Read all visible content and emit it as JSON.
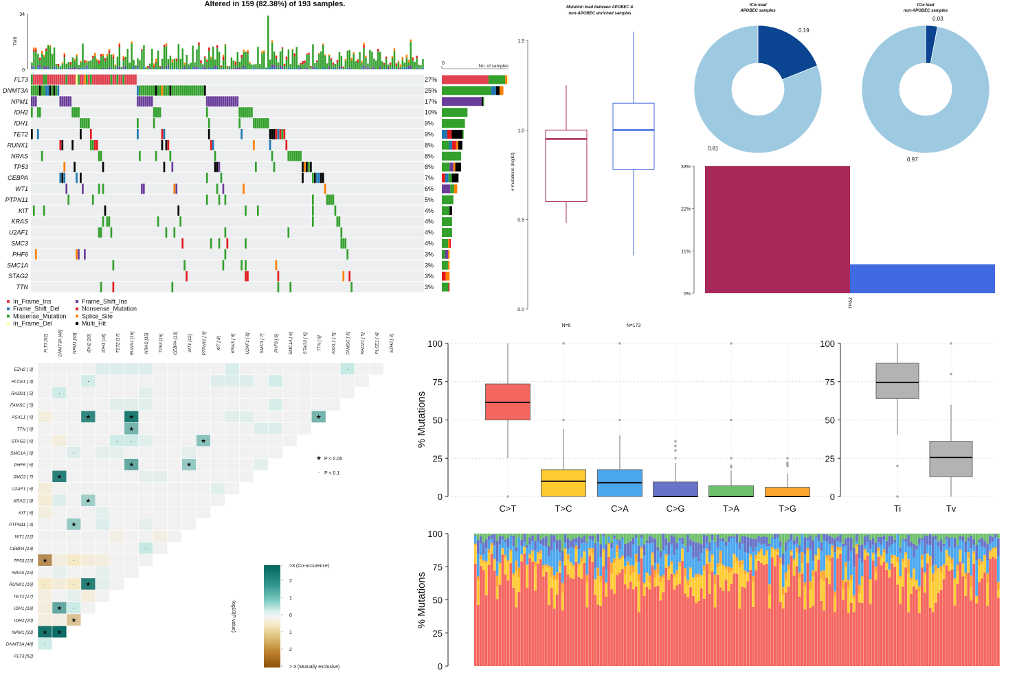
{
  "colors": {
    "In_Frame_Ins": "#e0404f",
    "Frame_Shift_Del": "#1f78b4",
    "Missense_Mutation": "#33a02c",
    "In_Frame_Del": "#ffff99",
    "Frame_Shift_Ins": "#6a3d9a",
    "Nonsense_Mutation": "#e31a1c",
    "Splice_Site": "#ff7f00",
    "Multi_Hit": "#000000",
    "apobec": "#a8285a",
    "non_apobec": "#4169e1",
    "tcw_dark": "#0b4591",
    "tcw_light": "#9ecae1",
    "co_occurrence": "#01665e",
    "mutually_exclusive": "#8c510a"
  },
  "oncoplot": {
    "title": "Altered in 159 (82.38%) of 193 samples.",
    "n_samples": 193,
    "tmb_label": "TMB",
    "tmb_ticks": [
      "0",
      "34"
    ],
    "tmb_max": 34,
    "bar_axis_zero": "0",
    "bar_axis_label": "No. of samples",
    "genes": [
      {
        "name": "FLT3",
        "pct": "27%",
        "pctv": 27,
        "count": 52,
        "mix": {
          "In_Frame_Ins": 0.7,
          "Missense_Mutation": 0.25,
          "Splice_Site": 0.03,
          "In_Frame_Del": 0.02
        }
      },
      {
        "name": "DNMT3A",
        "pct": "25%",
        "pctv": 25,
        "count": 48,
        "mix": {
          "Missense_Mutation": 0.8,
          "Frame_Shift_Del": 0.08,
          "Multi_Hit": 0.06,
          "Splice_Site": 0.06
        }
      },
      {
        "name": "NPM1",
        "pct": "17%",
        "pctv": 17,
        "count": 33,
        "mix": {
          "Frame_Shift_Ins": 0.94,
          "Multi_Hit": 0.04,
          "Missense_Mutation": 0.02
        }
      },
      {
        "name": "IDH2",
        "pct": "10%",
        "pctv": 10,
        "count": 20,
        "mix": {
          "Missense_Mutation": 1
        }
      },
      {
        "name": "IDH1",
        "pct": "9%",
        "pctv": 9,
        "count": 18,
        "mix": {
          "Missense_Mutation": 1
        }
      },
      {
        "name": "TET2",
        "pct": "9%",
        "pctv": 9,
        "count": 17,
        "mix": {
          "Frame_Shift_Del": 0.25,
          "Nonsense_Mutation": 0.2,
          "Multi_Hit": 0.5,
          "Missense_Mutation": 0.05
        }
      },
      {
        "name": "RUNX1",
        "pct": "8%",
        "pctv": 8,
        "count": 16,
        "mix": {
          "Missense_Mutation": 0.35,
          "Frame_Shift_Del": 0.15,
          "Nonsense_Mutation": 0.2,
          "Splice_Site": 0.1,
          "Multi_Hit": 0.2
        }
      },
      {
        "name": "NRAS",
        "pct": "8%",
        "pctv": 8,
        "count": 15,
        "mix": {
          "Missense_Mutation": 1
        }
      },
      {
        "name": "TP53",
        "pct": "8%",
        "pctv": 8,
        "count": 15,
        "mix": {
          "Missense_Mutation": 0.4,
          "Frame_Shift_Ins": 0.2,
          "Splice_Site": 0.1,
          "Multi_Hit": 0.3
        }
      },
      {
        "name": "CEBPA",
        "pct": "7%",
        "pctv": 7,
        "count": 13,
        "mix": {
          "Nonsense_Mutation": 0.2,
          "Frame_Shift_Del": 0.2,
          "Missense_Mutation": 0.2,
          "Multi_Hit": 0.4
        }
      },
      {
        "name": "WT1",
        "pct": "6%",
        "pctv": 6,
        "count": 12,
        "mix": {
          "Frame_Shift_Ins": 0.55,
          "Missense_Mutation": 0.25,
          "Splice_Site": 0.2
        }
      },
      {
        "name": "PTPN11",
        "pct": "5%",
        "pctv": 5,
        "count": 9,
        "mix": {
          "Missense_Mutation": 1
        }
      },
      {
        "name": "KIT",
        "pct": "4%",
        "pctv": 4,
        "count": 8,
        "mix": {
          "Missense_Mutation": 0.75,
          "Multi_Hit": 0.25
        }
      },
      {
        "name": "KRAS",
        "pct": "4%",
        "pctv": 4,
        "count": 8,
        "mix": {
          "Missense_Mutation": 1
        }
      },
      {
        "name": "U2AF1",
        "pct": "4%",
        "pctv": 4,
        "count": 8,
        "mix": {
          "Missense_Mutation": 1
        }
      },
      {
        "name": "SMC3",
        "pct": "4%",
        "pctv": 4,
        "count": 7,
        "mix": {
          "Missense_Mutation": 0.7,
          "Splice_Site": 0.15,
          "Nonsense_Mutation": 0.15
        }
      },
      {
        "name": "PHF6",
        "pct": "3%",
        "pctv": 3,
        "count": 6,
        "mix": {
          "Missense_Mutation": 0.4,
          "Frame_Shift_Ins": 0.4,
          "Splice_Site": 0.2
        }
      },
      {
        "name": "SMC1A",
        "pct": "3%",
        "pctv": 3,
        "count": 6,
        "mix": {
          "Missense_Mutation": 0.8,
          "Splice_Site": 0.2
        }
      },
      {
        "name": "STAG2",
        "pct": "3%",
        "pctv": 3,
        "count": 6,
        "mix": {
          "Nonsense_Mutation": 0.5,
          "Splice_Site": 0.5
        }
      },
      {
        "name": "TTN",
        "pct": "3%",
        "pctv": 3,
        "count": 6,
        "mix": {
          "Missense_Mutation": 0.85,
          "Nonsense_Mutation": 0.15
        }
      }
    ]
  },
  "legend": [
    {
      "key": "In_Frame_Ins",
      "label": "In_Frame_Ins"
    },
    {
      "key": "Frame_Shift_Del",
      "label": "Frame_Shift_Del"
    },
    {
      "key": "Missense_Mutation",
      "label": "Missense_Mutation"
    },
    {
      "key": "In_Frame_Del",
      "label": "In_Frame_Del"
    },
    {
      "key": "Frame_Shift_Ins",
      "label": "Frame_Shift_Ins"
    },
    {
      "key": "Nonsense_Mutation",
      "label": "Nonsense_Mutation"
    },
    {
      "key": "Splice_Site",
      "label": "Splice_Site"
    },
    {
      "key": "Multi_Hit",
      "label": "Multi_Hit"
    }
  ],
  "somatic": {
    "genes": [
      "FLT3 [52]",
      "DNMT3A [48]",
      "NPM1 [33]",
      "IDH2 [20]",
      "IDH1 [18]",
      "TET2 [17]",
      "RUNX1 [16]",
      "NRAS [15]",
      "TP53 [15]",
      "CEBPA [13]",
      "WT1 [12]",
      "PTPN11 [ 9]",
      "KIT [ 8]",
      "KRAS [ 8]",
      "U2AF1 [ 8]",
      "SMC3 [ 7]",
      "PHF6 [ 6]",
      "SMC1A [ 6]",
      "STAG2 [ 6]",
      "TTN [ 6]",
      "ASXL1 [ 5]",
      "FAMSC [ 5]",
      "RAD21 [ 5]",
      "PLCE1 [ 4]",
      "EZH2 [ 3]"
    ],
    "pairs": [
      {
        "row": "EZH2",
        "col": "IDH1",
        "v": 0.5
      },
      {
        "row": "EZH2",
        "col": "TET2",
        "v": 0.5
      },
      {
        "row": "EZH2",
        "col": "RUNX1",
        "v": 0.5
      },
      {
        "row": "EZH2",
        "col": "NRAS",
        "v": 0.5
      },
      {
        "row": "EZH2",
        "col": "KRAS",
        "v": 0.6
      },
      {
        "row": "EZH2",
        "col": "FAMSC",
        "v": 1.0,
        "sig": "·"
      },
      {
        "row": "PLCE1",
        "col": "IDH2",
        "v": 0.7,
        "sig": "·"
      },
      {
        "row": "PLCE1",
        "col": "KIT",
        "v": 0.5
      },
      {
        "row": "PLCE1",
        "col": "KRAS",
        "v": 0.5
      },
      {
        "row": "PLCE1",
        "col": "U2AF1",
        "v": 0.5
      },
      {
        "row": "PLCE1",
        "col": "PHF6",
        "v": 0.7
      },
      {
        "row": "RAD21",
        "col": "DNMT3A",
        "v": 0.8,
        "sig": "·"
      },
      {
        "row": "RAD21",
        "col": "NRAS",
        "v": 0.4
      },
      {
        "row": "FAMSC",
        "col": "TET2",
        "v": 0.4
      },
      {
        "row": "FAMSC",
        "col": "RUNX1",
        "v": 0.4
      },
      {
        "row": "FAMSC",
        "col": "NRAS",
        "v": 0.4
      },
      {
        "row": "FAMSC",
        "col": "PHF6",
        "v": 0.6
      },
      {
        "row": "ASXL1",
        "col": "FLT3",
        "v": -0.4
      },
      {
        "row": "ASXL1",
        "col": "IDH2",
        "v": 2.5,
        "sig": "★"
      },
      {
        "row": "ASXL1",
        "col": "RUNX1",
        "v": 2.7,
        "sig": "★"
      },
      {
        "row": "ASXL1",
        "col": "KRAS",
        "v": 0.4
      },
      {
        "row": "ASXL1",
        "col": "U2AF1",
        "v": 0.4
      },
      {
        "row": "ASXL1",
        "col": "TTN",
        "v": 1.8,
        "sig": "★"
      },
      {
        "row": "TTN",
        "col": "RUNX1",
        "v": 1.8,
        "sig": "★"
      },
      {
        "row": "TTN",
        "col": "SMC3",
        "v": 0.5
      },
      {
        "row": "TTN",
        "col": "PHF6",
        "v": 0.5
      },
      {
        "row": "STAG2",
        "col": "DNMT3A",
        "v": -0.4
      },
      {
        "row": "STAG2",
        "col": "TET2",
        "v": 0.8,
        "sig": "·"
      },
      {
        "row": "STAG2",
        "col": "RUNX1",
        "v": 0.8,
        "sig": "·"
      },
      {
        "row": "STAG2",
        "col": "NRAS",
        "v": 0.4
      },
      {
        "row": "STAG2",
        "col": "PTPN11",
        "v": 1.6,
        "sig": "★"
      },
      {
        "row": "SMC1A",
        "col": "NPM1",
        "v": 0.5,
        "sig": "·"
      },
      {
        "row": "SMC1A",
        "col": "IDH1",
        "v": 0.3
      },
      {
        "row": "SMC1A",
        "col": "TET2",
        "v": 0.3
      },
      {
        "row": "SMC1A",
        "col": "WT1",
        "v": 0.3
      },
      {
        "row": "PHF6",
        "col": "RUNX1",
        "v": 2.0,
        "sig": "★"
      },
      {
        "row": "PHF6",
        "col": "WT1",
        "v": 1.5,
        "sig": "★"
      },
      {
        "row": "PHF6",
        "col": "SMC3",
        "v": 0.3
      },
      {
        "row": "SMC3",
        "col": "DNMT3A",
        "v": 2.6,
        "sig": "★"
      },
      {
        "row": "SMC3",
        "col": "NRAS",
        "v": 0.3
      },
      {
        "row": "SMC3",
        "col": "TP53",
        "v": 0.3
      },
      {
        "row": "U2AF1",
        "col": "FLT3",
        "v": -0.5
      },
      {
        "row": "U2AF1",
        "col": "KIT",
        "v": 0.4
      },
      {
        "row": "KRAS",
        "col": "FLT3",
        "v": -0.6
      },
      {
        "row": "KRAS",
        "col": "DNMT3A",
        "v": 0.5
      },
      {
        "row": "KRAS",
        "col": "IDH2",
        "v": 1.4,
        "sig": "★"
      },
      {
        "row": "KIT",
        "col": "FLT3",
        "v": -0.4
      },
      {
        "row": "KIT",
        "col": "IDH1",
        "v": 0.3
      },
      {
        "row": "PTPN11",
        "col": "NPM1",
        "v": 1.5,
        "sig": "★"
      },
      {
        "row": "PTPN11",
        "col": "IDH1",
        "v": 0.5
      },
      {
        "row": "PTPN11",
        "col": "NRAS",
        "v": 0.3
      },
      {
        "row": "WT1",
        "col": "TET2",
        "v": -0.3
      },
      {
        "row": "WT1",
        "col": "TP53",
        "v": -0.3
      },
      {
        "row": "CEBPA",
        "col": "NRAS",
        "v": 1.0,
        "sig": "·"
      },
      {
        "row": "TP53",
        "col": "FLT3",
        "v": -2.2,
        "sig": "★"
      },
      {
        "row": "TP53",
        "col": "DNMT3A",
        "v": -0.4
      },
      {
        "row": "TP53",
        "col": "NPM1",
        "v": -0.9,
        "sig": "·"
      },
      {
        "row": "TP53",
        "col": "IDH2",
        "v": -0.5
      },
      {
        "row": "TP53",
        "col": "IDH1",
        "v": -0.4
      },
      {
        "row": "NRAS",
        "col": "DNMT3A",
        "v": 0.3
      },
      {
        "row": "NRAS",
        "col": "IDH1",
        "v": 0.3
      },
      {
        "row": "RUNX1",
        "col": "FLT3",
        "v": -0.9,
        "sig": "·"
      },
      {
        "row": "RUNX1",
        "col": "DNMT3A",
        "v": -0.5
      },
      {
        "row": "RUNX1",
        "col": "NPM1",
        "v": -0.9,
        "sig": "·"
      },
      {
        "row": "RUNX1",
        "col": "IDH2",
        "v": 2.6,
        "sig": "★"
      },
      {
        "row": "RUNX1",
        "col": "IDH1",
        "v": 0.3
      },
      {
        "row": "TET2",
        "col": "FLT3",
        "v": -0.4
      },
      {
        "row": "TET2",
        "col": "NPM1",
        "v": 0.3
      },
      {
        "row": "TET2",
        "col": "IDH2",
        "v": -0.5
      },
      {
        "row": "IDH1",
        "col": "FLT3",
        "v": -0.5
      },
      {
        "row": "IDH1",
        "col": "DNMT3A",
        "v": 2.0,
        "sig": "★"
      },
      {
        "row": "IDH1",
        "col": "NPM1",
        "v": 0.9,
        "sig": "·"
      },
      {
        "row": "IDH2",
        "col": "FLT3",
        "v": -0.4
      },
      {
        "row": "IDH2",
        "col": "DNMT3A",
        "v": -0.3
      },
      {
        "row": "IDH2",
        "col": "NPM1",
        "v": -1.5,
        "sig": "★"
      },
      {
        "row": "NPM1",
        "col": "FLT3",
        "v": 2.8,
        "sig": "★"
      },
      {
        "row": "NPM1",
        "col": "DNMT3A",
        "v": 2.9,
        "sig": "★"
      },
      {
        "row": "DNMT3A",
        "col": "FLT3",
        "v": 0.8,
        "sig": "·"
      }
    ],
    "sig_legend": [
      {
        "mark": "★",
        "label": "P < 0.05"
      },
      {
        "mark": "·",
        "label": "P < 0.1"
      }
    ],
    "scale_label": "-log10(P-value)",
    "scale_ticks": [
      ">3 (Co-occurence)",
      "2",
      "1",
      "0",
      "1",
      "2",
      "> 3 (Mutually exclusive)"
    ]
  },
  "apobec_box": {
    "title_line1": "Mutation load between APOBEC &",
    "title_line2": "non-APOBEC enriched samples",
    "ylabel": "# mutations (log10)",
    "yticks": [
      "0.0",
      "0.5",
      "1.0",
      "1.5"
    ],
    "ylim": [
      0,
      1.5
    ],
    "groups": [
      {
        "n_label": "N=6",
        "min": 0.48,
        "q1": 0.6,
        "median": 0.95,
        "q3": 1.0,
        "max": 1.25
      },
      {
        "n_label": "N=173",
        "min": 0.3,
        "q1": 0.78,
        "median": 1.0,
        "q3": 1.15,
        "max": 1.55
      }
    ]
  },
  "pies": [
    {
      "title_line1": "tCw load",
      "title_line2": "APOBEC samples",
      "values": [
        0.19,
        0.81
      ],
      "labels": [
        "0.19",
        "0.81"
      ]
    },
    {
      "title_line1": "tCw load",
      "title_line2": "non-APOBEC samples",
      "values": [
        0.03,
        0.97
      ],
      "labels": [
        "0.03",
        "0.97"
      ]
    }
  ],
  "tp53_bar": {
    "type": "bar",
    "category": "TP53",
    "values": [
      33,
      7.5
    ],
    "yticks": [
      "0%",
      "11%",
      "22%",
      "33%"
    ],
    "ylim": [
      0,
      33
    ]
  },
  "chart_data": [
    {
      "type": "box",
      "ylabel": "% Mutations",
      "ylim": [
        0,
        100
      ],
      "yticks": [
        "0",
        "25",
        "50",
        "75",
        "100"
      ],
      "grid": true,
      "categories": [
        "C>T",
        "T>C",
        "C>A",
        "C>G",
        "T>A",
        "T>G"
      ],
      "colors": [
        "#f4665f",
        "#ffcb33",
        "#4aa8f0",
        "#6773c6",
        "#6fbf6d",
        "#ffa62f"
      ],
      "stats": [
        {
          "min": 25,
          "q1": 50,
          "median": 61.5,
          "q3": 73.5,
          "max": 100,
          "outliers": [
            0
          ]
        },
        {
          "min": 0,
          "q1": 0,
          "median": 10,
          "q3": 17.5,
          "max": 44,
          "outliers": [
            50,
            100
          ]
        },
        {
          "min": 0,
          "q1": 0,
          "median": 9,
          "q3": 17.5,
          "max": 40,
          "outliers": [
            50,
            100
          ]
        },
        {
          "min": 0,
          "q1": 0,
          "median": 0,
          "q3": 9.5,
          "max": 22,
          "outliers": [
            25,
            30,
            33,
            36
          ]
        },
        {
          "min": 0,
          "q1": 0,
          "median": 0,
          "q3": 7,
          "max": 17,
          "outliers": [
            19,
            20,
            25,
            50,
            100
          ]
        },
        {
          "min": 0,
          "q1": 0,
          "median": 0,
          "q3": 6,
          "max": 15,
          "outliers": [
            20,
            21,
            22,
            25
          ]
        }
      ]
    },
    {
      "type": "box",
      "ylim": [
        0,
        100
      ],
      "yticks": [
        "0",
        "25",
        "50",
        "75",
        "100"
      ],
      "grid": true,
      "categories": [
        "Ti",
        "Tv"
      ],
      "colors": [
        "#b3b3b3",
        "#b3b3b3"
      ],
      "stats": [
        {
          "min": 40,
          "q1": 64,
          "median": 74.5,
          "q3": 87,
          "max": 100,
          "outliers": [
            20,
            0
          ]
        },
        {
          "min": 0,
          "q1": 13,
          "median": 25.5,
          "q3": 36,
          "max": 60,
          "outliers": [
            80,
            100
          ]
        }
      ]
    },
    {
      "type": "bar",
      "stacked": true,
      "ylabel": "% Mutations",
      "ylim": [
        0,
        100
      ],
      "yticks": [
        "0",
        "25",
        "50",
        "75",
        "100"
      ],
      "series_order": [
        "C>T",
        "T>C",
        "C>A",
        "C>G",
        "T>A",
        "T>G"
      ]
    }
  ]
}
